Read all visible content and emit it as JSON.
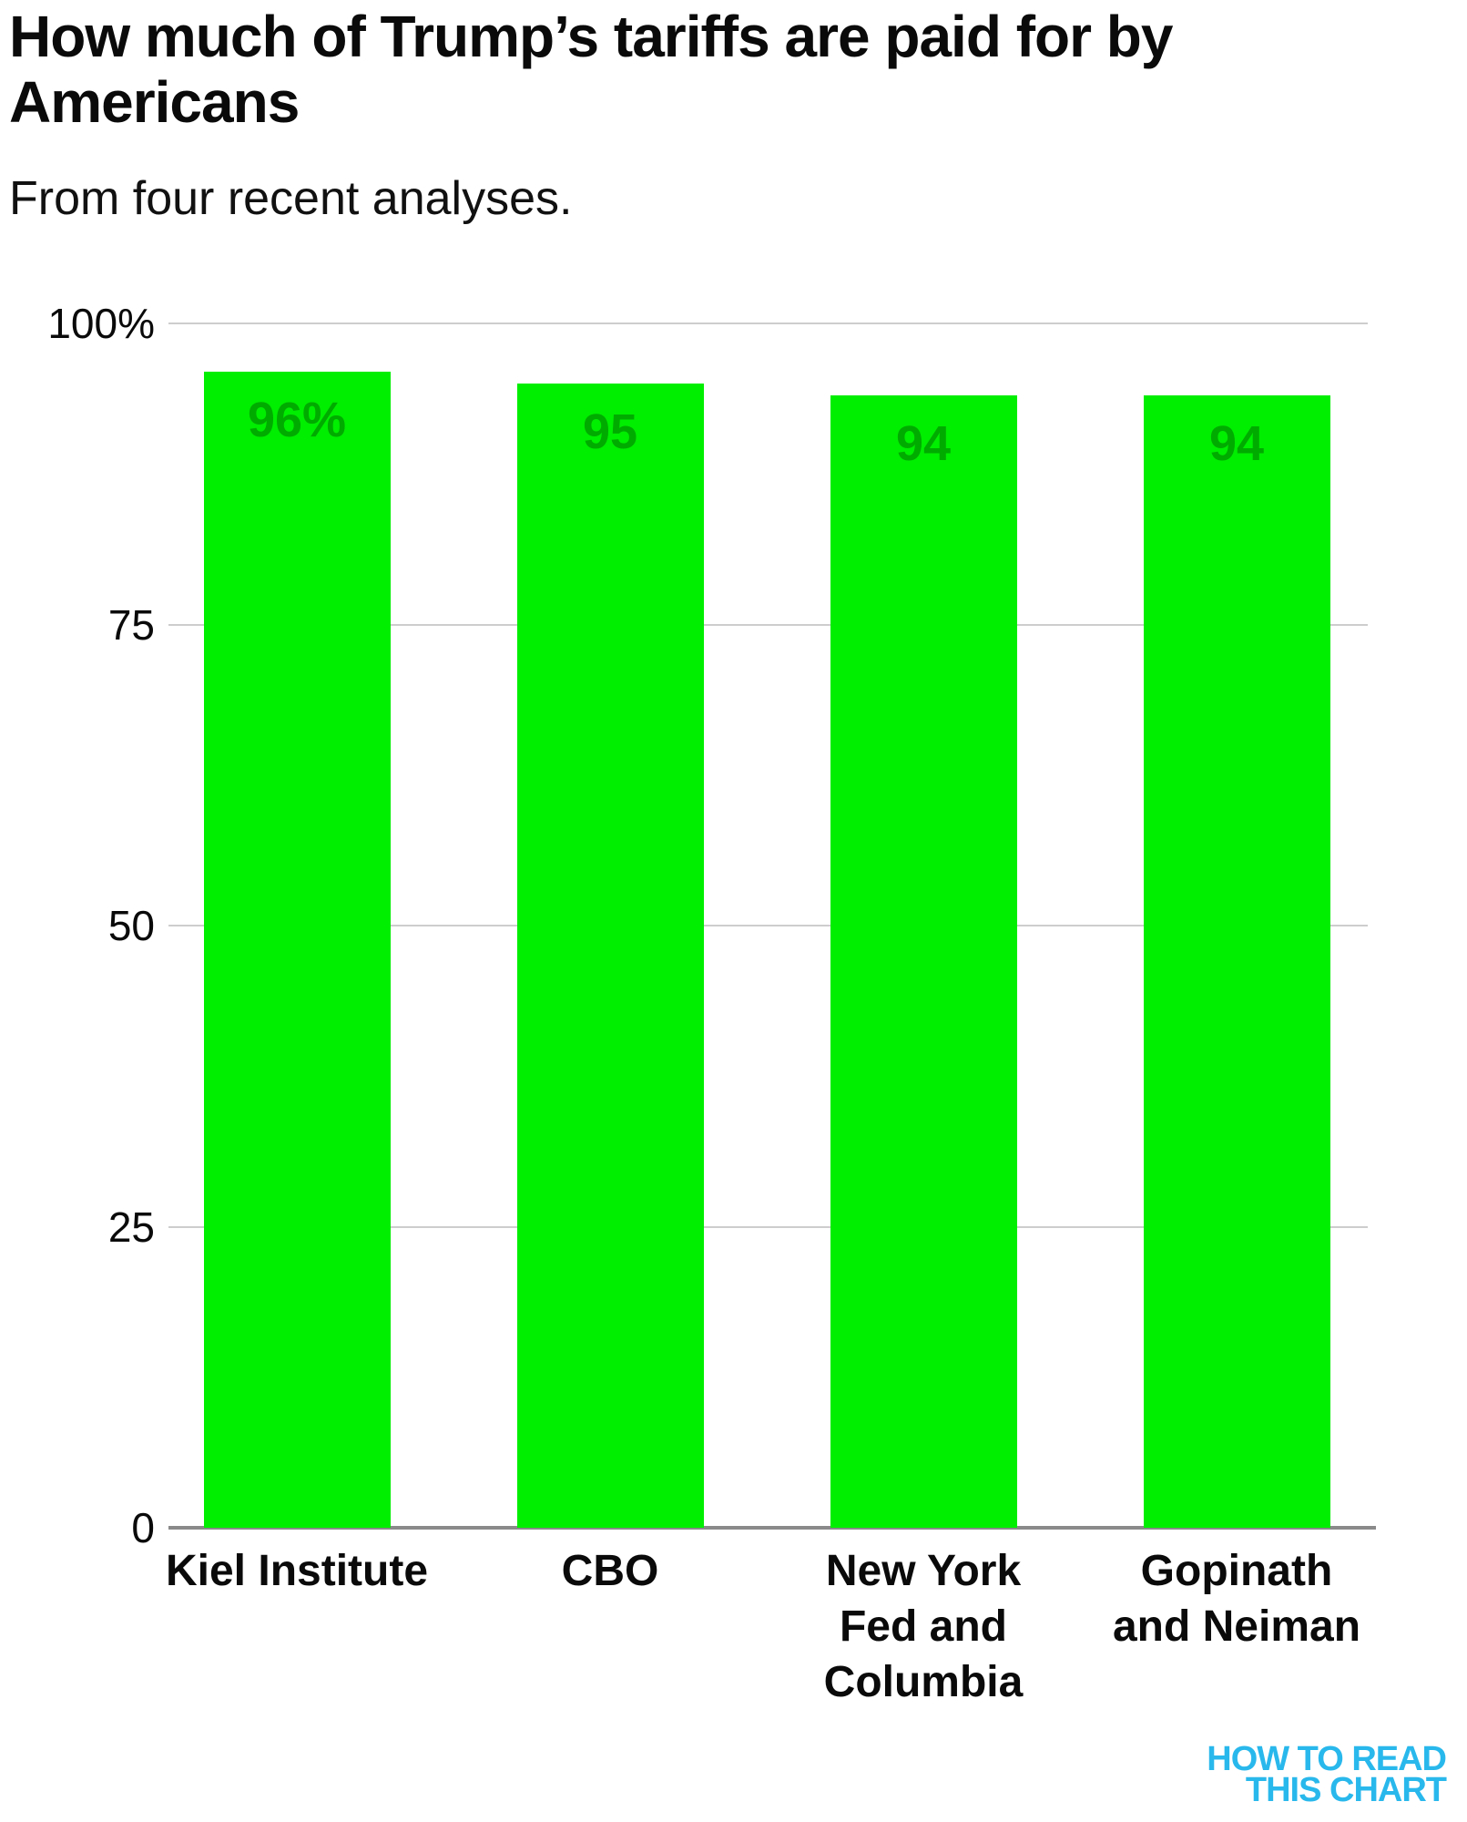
{
  "chart_data": {
    "type": "bar",
    "title": "How much of Trump’s tariffs are paid for by Americans",
    "subtitle": "From four recent analyses.",
    "categories": [
      "Kiel Institute",
      "CBO",
      "New York\nFed and\nColumbia",
      "Gopinath\nand Neiman"
    ],
    "values": [
      96,
      95,
      94,
      94
    ],
    "value_labels": [
      "96%",
      "95",
      "94",
      "94"
    ],
    "ylim": [
      0,
      100
    ],
    "yticks": [
      {
        "value": 100,
        "label": "100%"
      },
      {
        "value": 75,
        "label": "75"
      },
      {
        "value": 50,
        "label": "50"
      },
      {
        "value": 25,
        "label": "25"
      },
      {
        "value": 0,
        "label": "0"
      }
    ],
    "grid": "horizontal-light-gray",
    "legend": "none",
    "colors": {
      "bar": "#00EE00",
      "value_label": "#00AB00",
      "gridline": "#CDCDCD",
      "axis_line": "#8A8A8A",
      "text": "#0A0A0A"
    }
  },
  "footer": {
    "logo_lines": [
      "HOW TO READ",
      "THIS CHART"
    ],
    "logo_color": "#29B8EC"
  }
}
